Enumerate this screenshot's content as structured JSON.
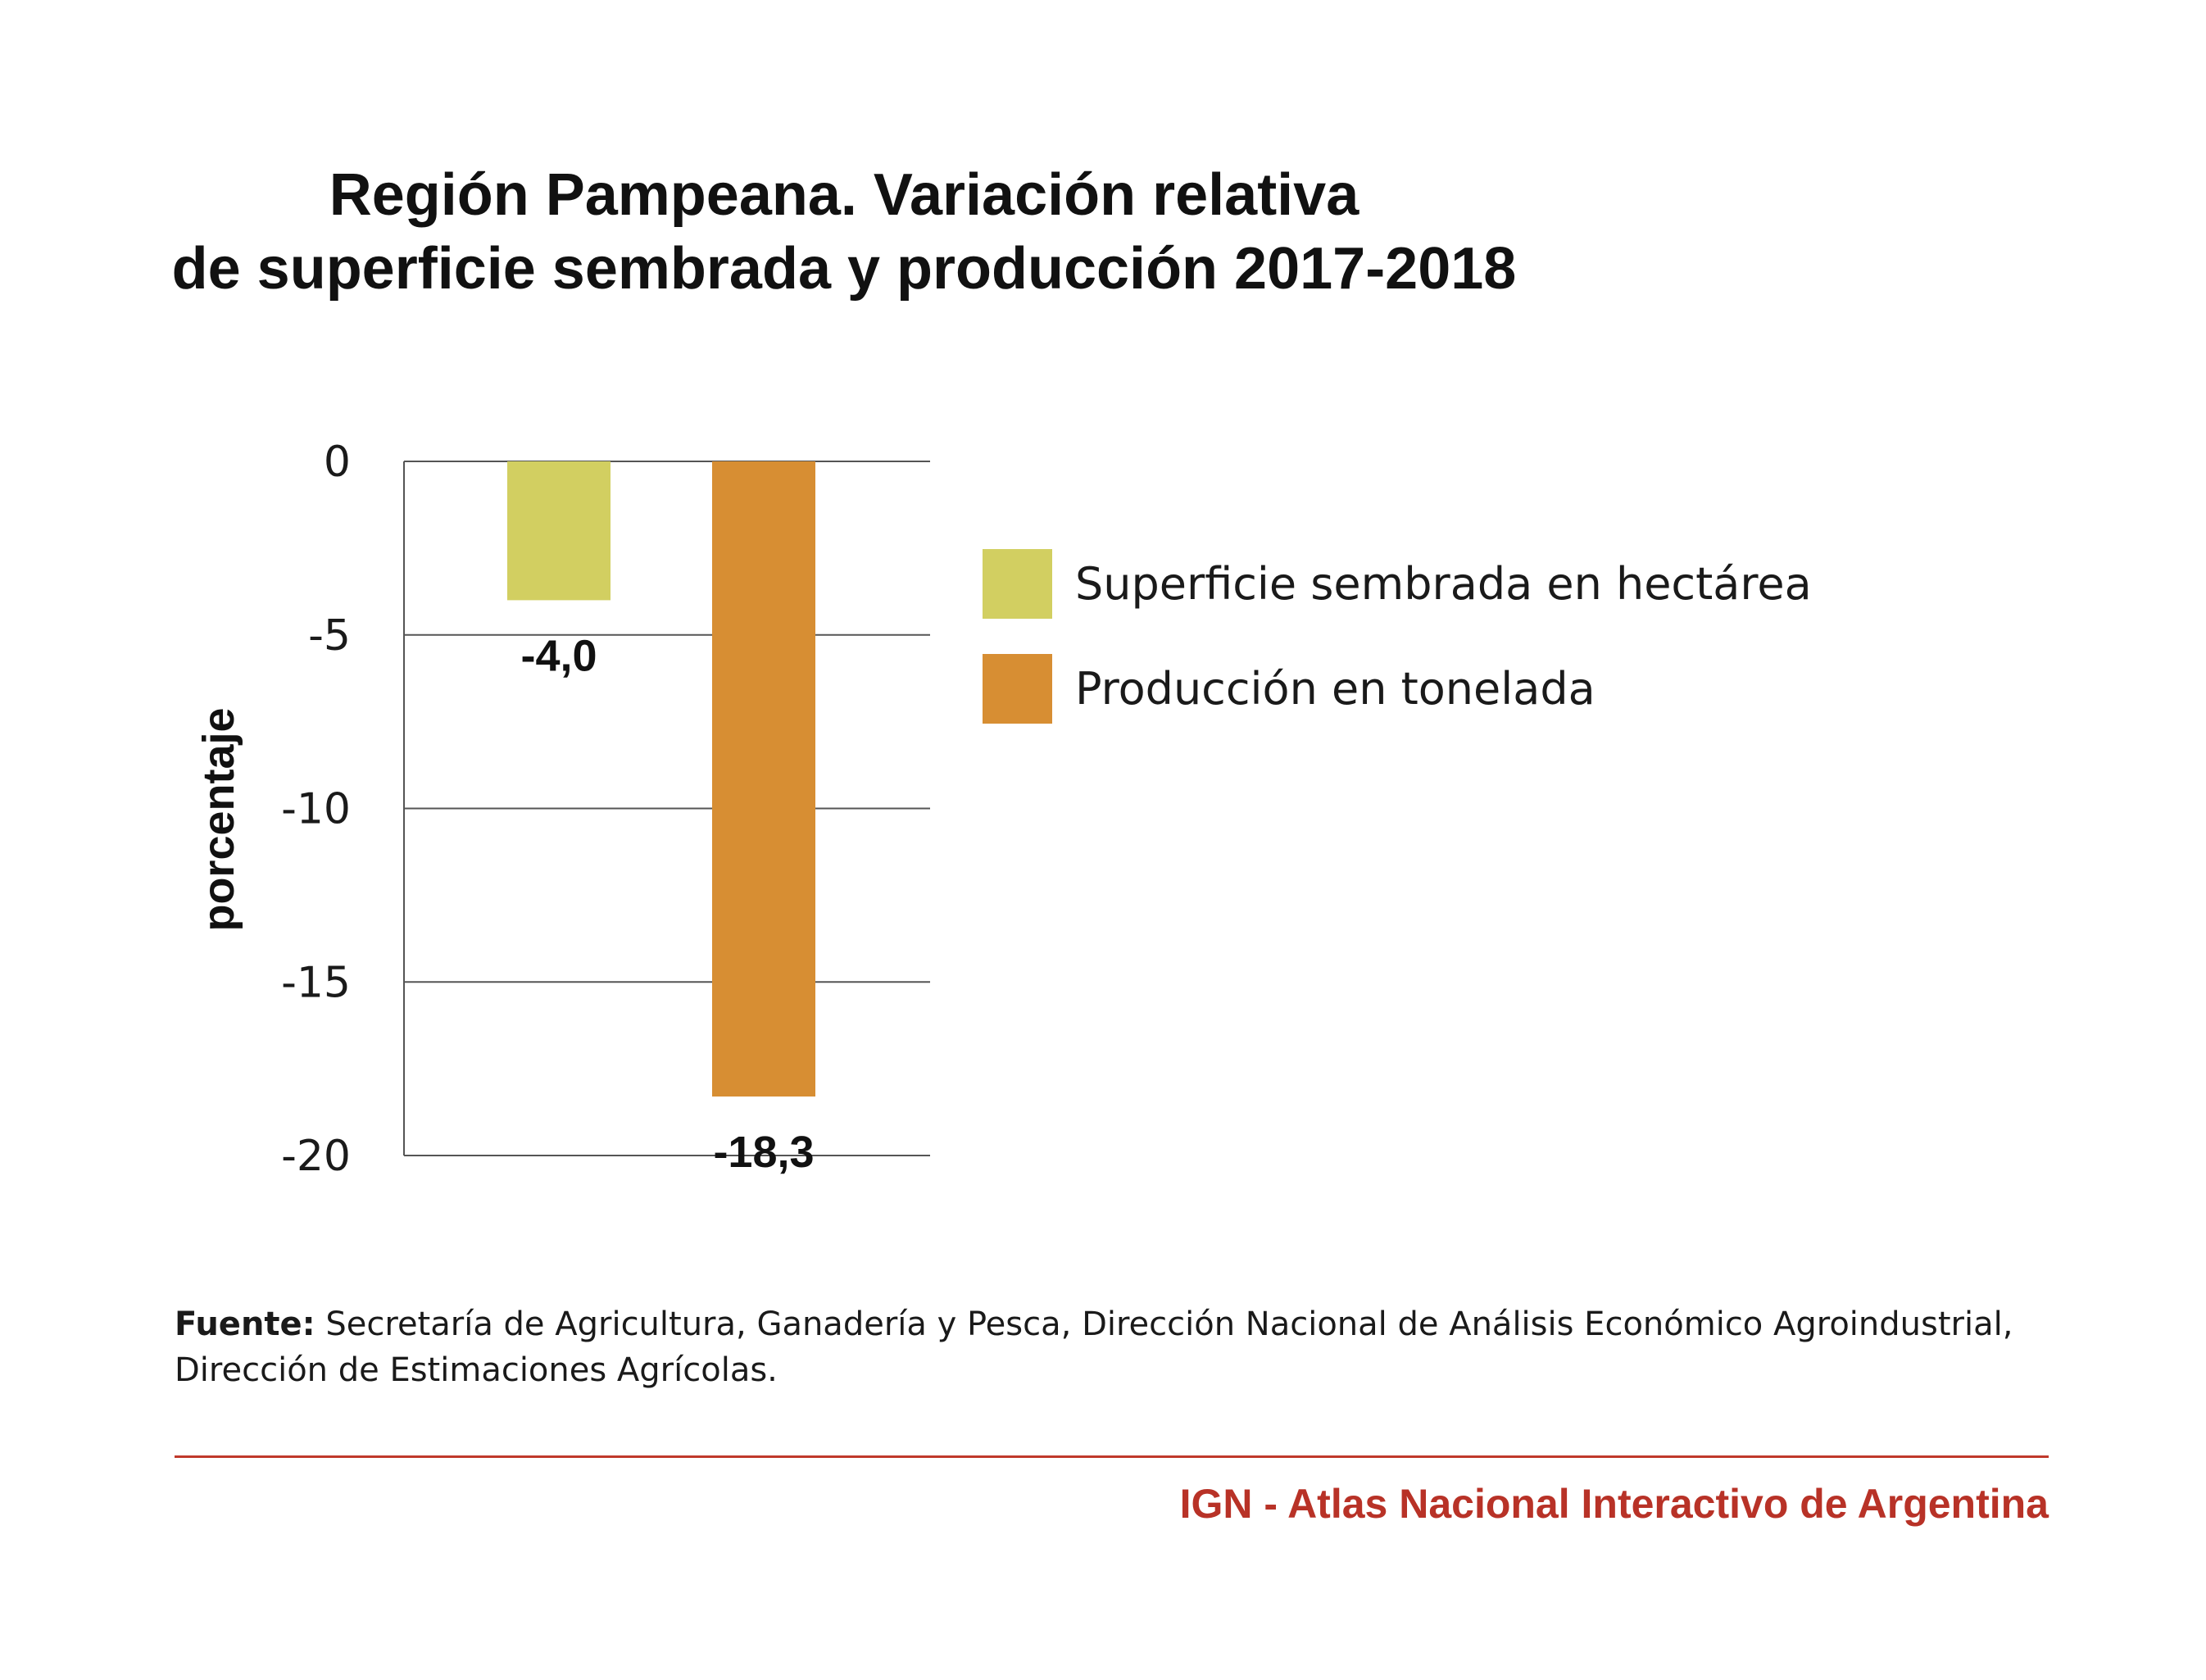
{
  "chart_data": {
    "type": "bar",
    "title": [
      "Región Pampeana. Variación relativa",
      "de superficie sembrada y producción 2017-2018"
    ],
    "ylabel": "porcentaje",
    "xlabel": "",
    "ylim": [
      -20,
      0
    ],
    "yticks": [
      0,
      -5,
      -10,
      -15,
      -20
    ],
    "grid": true,
    "legend_position": "right",
    "categories": [
      "Superficie sembrada en hectárea",
      "Producción en tonelada"
    ],
    "values": [
      -4.0,
      -18.3
    ],
    "value_labels": [
      "-4,0",
      "-18,3"
    ],
    "colors": [
      "#d2cf61",
      "#d78e33"
    ],
    "legend": [
      {
        "label": "Superficie sembrada en hectárea",
        "color": "#d2cf61"
      },
      {
        "label": "Producción en tonelada",
        "color": "#d78e33"
      }
    ]
  },
  "source": {
    "label": "Fuente:",
    "text": "Secretaría de Agricultura, Ganadería y Pesca, Dirección Nacional de Análisis Económico Agroindustrial, Dirección de Estimaciones Agrícolas."
  },
  "footer": {
    "credit": "IGN - Atlas Nacional Interactivo de Argentina",
    "color": "#b83227"
  }
}
